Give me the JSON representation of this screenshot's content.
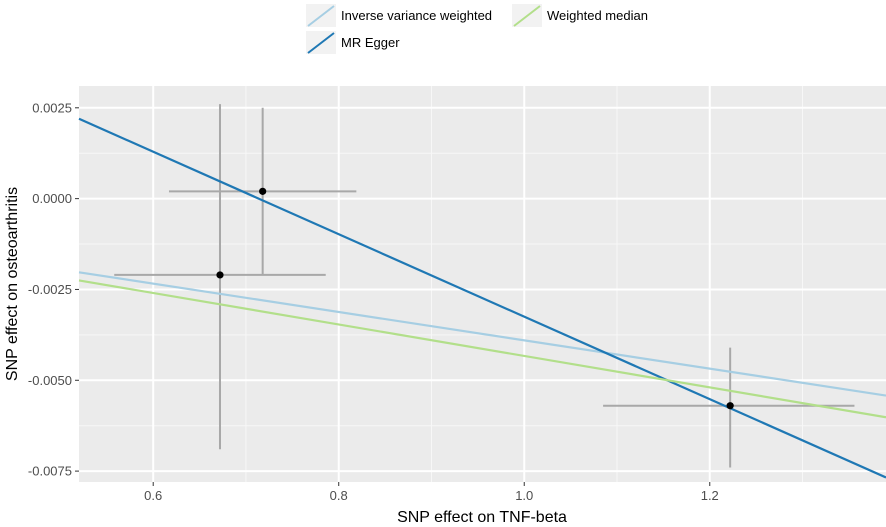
{
  "chart_data": {
    "type": "scatter",
    "xlabel": "SNP effect on TNF-beta",
    "ylabel": "SNP effect on osteoarthritis",
    "xlim": [
      0.52,
      1.39
    ],
    "ylim": [
      -0.0078,
      0.0031
    ],
    "x_ticks": [
      0.6,
      0.8,
      1.0,
      1.2
    ],
    "x_tick_labels": [
      "0.6",
      "0.8",
      "1.0",
      "1.2"
    ],
    "y_ticks": [
      0.0025,
      0.0,
      -0.0025,
      -0.005,
      -0.0075
    ],
    "y_tick_labels": [
      "0.0025",
      "0.0000",
      "-0.0025",
      "-0.0050",
      "-0.0075"
    ],
    "grid": true,
    "legend_position": "top",
    "points": [
      {
        "x": 0.718,
        "y": 0.0002,
        "x_lo": 0.617,
        "x_hi": 0.819,
        "y_lo": -0.0021,
        "y_hi": 0.0025
      },
      {
        "x": 0.672,
        "y": -0.0021,
        "x_lo": 0.558,
        "x_hi": 0.786,
        "y_lo": -0.0069,
        "y_hi": 0.0026
      },
      {
        "x": 1.222,
        "y": -0.0057,
        "x_lo": 1.085,
        "x_hi": 1.356,
        "y_lo": -0.0074,
        "y_hi": -0.0041
      }
    ],
    "series": [
      {
        "name": "Inverse variance weighted",
        "color": "#a6cee3",
        "intercept": 0.0,
        "slope": -0.0039,
        "type": "line"
      },
      {
        "name": "MR Egger",
        "color": "#1f78b4",
        "intercept": 0.0081,
        "slope": -0.01135,
        "type": "line"
      },
      {
        "name": "Weighted median",
        "color": "#b2df8a",
        "intercept": 0.0,
        "slope": -0.00433,
        "type": "line"
      }
    ]
  }
}
